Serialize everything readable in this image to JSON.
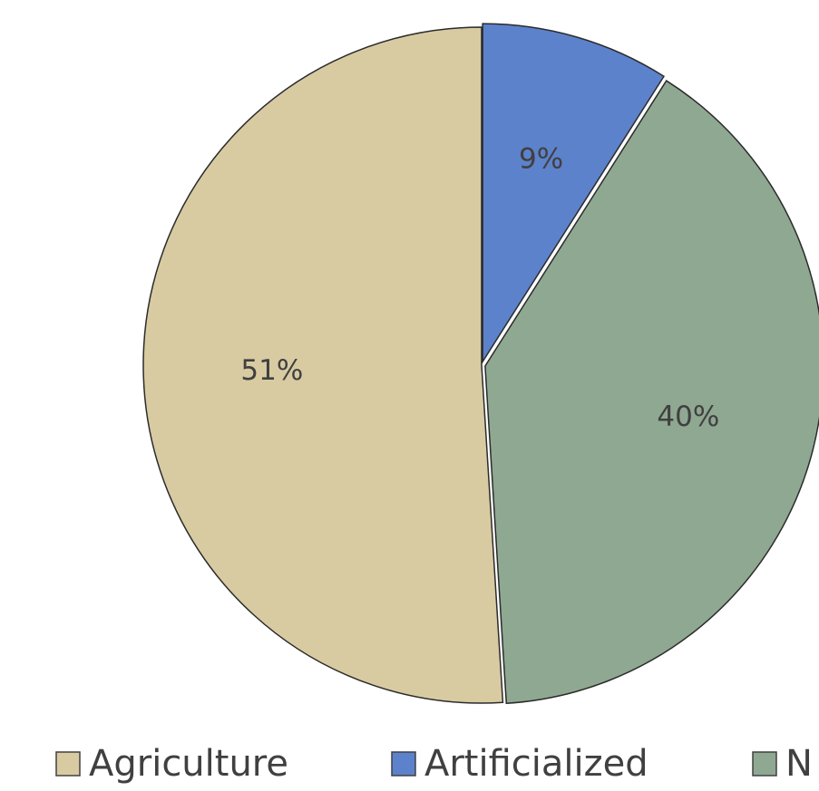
{
  "chart_data": {
    "type": "pie",
    "categories": [
      "Agriculture",
      "Artificialized",
      "N"
    ],
    "values": [
      51,
      9,
      40
    ],
    "data_labels": [
      "51%",
      "9%",
      "40%"
    ],
    "legend_labels": [
      "Agriculture",
      "Artificialized",
      "N"
    ],
    "colors": [
      "#d8cba2",
      "#5d82cc",
      "#8fa892"
    ],
    "legend_placement": "bottom"
  }
}
